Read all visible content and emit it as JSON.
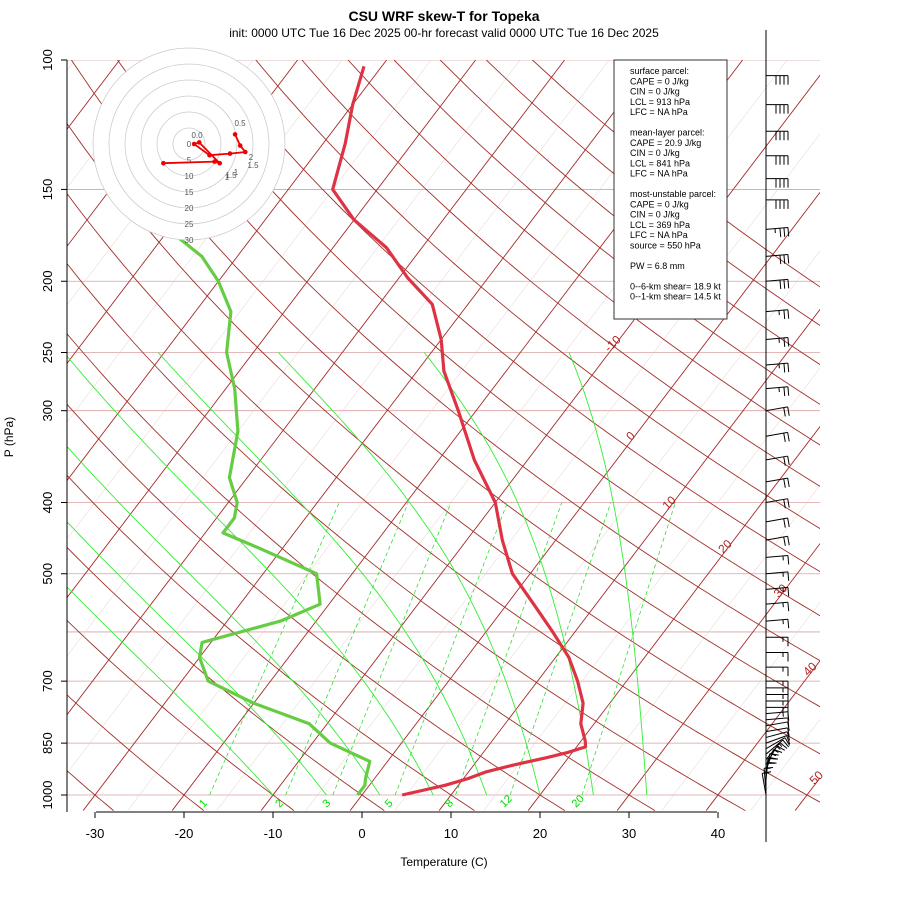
{
  "header": {
    "title": "CSU WRF skew-T for Topeka",
    "subtitle": "init: 0000 UTC Tue 16 Dec 2025    00-hr forecast valid 0000 UTC Tue 16 Dec 2025"
  },
  "colors": {
    "temperature": "#dd3344",
    "dewpoint": "#66cc44",
    "isotherm": "#a52a2a",
    "isobar": "#d9a0a0",
    "dry_adiabat": "#a0302a",
    "moist_adiabat": "#33ee33",
    "mixing_ratio": "#33dd33",
    "hodograph": "#ee0000"
  },
  "chart_data": {
    "type": "line",
    "title": "CSU WRF skew-T for Topeka",
    "xlabel": "Temperature (C)",
    "ylabel": "P (hPa)",
    "xlim": [
      -33,
      51
    ],
    "ylim": [
      1050,
      100
    ],
    "yscale": "log",
    "x_ticks": [
      "-30",
      "-20",
      "-10",
      "0",
      "10",
      "20",
      "30",
      "40"
    ],
    "y_ticks": [
      "100",
      "150",
      "200",
      "250",
      "300",
      "400",
      "500",
      "700",
      "850",
      "1000"
    ],
    "isobar_levels": [
      100,
      150,
      200,
      250,
      300,
      400,
      500,
      600,
      700,
      850,
      1000
    ],
    "isotherm_labels": [
      {
        "text": "-10",
        "t": -10,
        "p": 250
      },
      {
        "text": "0",
        "t": 0,
        "p": 330
      },
      {
        "text": "10",
        "t": 10,
        "p": 410
      },
      {
        "text": "20",
        "t": 20,
        "p": 470
      },
      {
        "text": "30",
        "t": 30,
        "p": 540
      },
      {
        "text": "40",
        "t": 40,
        "p": 690
      },
      {
        "text": "50",
        "t": 50,
        "p": 970
      }
    ],
    "mixing_ratio_labels": [
      "1",
      "2",
      "3",
      "5",
      "8",
      "12",
      "20"
    ],
    "series": [
      {
        "name": "Temperature",
        "points": [
          [
            4.5,
            1000
          ],
          [
            8.5,
            970
          ],
          [
            10.5,
            950
          ],
          [
            12,
            930
          ],
          [
            14.5,
            910
          ],
          [
            17.5,
            890
          ],
          [
            19.5,
            875
          ],
          [
            21,
            860
          ],
          [
            20.5,
            845
          ],
          [
            18.5,
            800
          ],
          [
            17,
            750
          ],
          [
            14.5,
            700
          ],
          [
            11.5,
            650
          ],
          [
            7.5,
            600
          ],
          [
            3,
            550
          ],
          [
            -2,
            500
          ],
          [
            -6,
            450
          ],
          [
            -10,
            400
          ],
          [
            -16,
            350
          ],
          [
            -22,
            300
          ],
          [
            -27,
            265
          ],
          [
            -30,
            240
          ],
          [
            -34,
            215
          ],
          [
            -39,
            198
          ],
          [
            -44,
            180
          ],
          [
            -50,
            165
          ],
          [
            -55,
            150
          ],
          [
            -57.5,
            130
          ],
          [
            -60,
            115
          ],
          [
            -62,
            102
          ]
        ]
      },
      {
        "name": "Dewpoint",
        "points": [
          [
            -0.5,
            1000
          ],
          [
            -0.5,
            970
          ],
          [
            -1,
            950
          ],
          [
            -2,
            900
          ],
          [
            -8,
            850
          ],
          [
            -12,
            800
          ],
          [
            -20,
            750
          ],
          [
            -27,
            700
          ],
          [
            -30,
            650
          ],
          [
            -31,
            620
          ],
          [
            -24,
            580
          ],
          [
            -21,
            550
          ],
          [
            -24,
            500
          ],
          [
            -33,
            460
          ],
          [
            -38,
            440
          ],
          [
            -38,
            420
          ],
          [
            -39,
            400
          ],
          [
            -42,
            370
          ],
          [
            -45,
            320
          ],
          [
            -49,
            280
          ],
          [
            -53,
            250
          ],
          [
            -56,
            220
          ],
          [
            -60,
            200
          ],
          [
            -64,
            185
          ],
          [
            -68,
            175
          ]
        ]
      }
    ],
    "wind_barbs_kt": [
      {
        "p": 1000,
        "spd": 12,
        "dir": 170
      },
      {
        "p": 985,
        "spd": 14,
        "dir": 175
      },
      {
        "p": 970,
        "spd": 16,
        "dir": 180
      },
      {
        "p": 955,
        "spd": 18,
        "dir": 185
      },
      {
        "p": 940,
        "spd": 18,
        "dir": 190
      },
      {
        "p": 925,
        "spd": 16,
        "dir": 200
      },
      {
        "p": 910,
        "spd": 15,
        "dir": 210
      },
      {
        "p": 895,
        "spd": 14,
        "dir": 220
      },
      {
        "p": 880,
        "spd": 13,
        "dir": 230
      },
      {
        "p": 865,
        "spd": 12,
        "dir": 240
      },
      {
        "p": 850,
        "spd": 12,
        "dir": 250
      },
      {
        "p": 835,
        "spd": 12,
        "dir": 255
      },
      {
        "p": 820,
        "spd": 12,
        "dir": 260
      },
      {
        "p": 805,
        "spd": 12,
        "dir": 260
      },
      {
        "p": 790,
        "spd": 12,
        "dir": 265
      },
      {
        "p": 775,
        "spd": 13,
        "dir": 265
      },
      {
        "p": 760,
        "spd": 13,
        "dir": 270
      },
      {
        "p": 745,
        "spd": 13,
        "dir": 270
      },
      {
        "p": 730,
        "spd": 13,
        "dir": 270
      },
      {
        "p": 715,
        "spd": 14,
        "dir": 270
      },
      {
        "p": 700,
        "spd": 14,
        "dir": 270
      },
      {
        "p": 670,
        "spd": 15,
        "dir": 270
      },
      {
        "p": 640,
        "spd": 15,
        "dir": 270
      },
      {
        "p": 610,
        "spd": 15,
        "dir": 270
      },
      {
        "p": 580,
        "spd": 15,
        "dir": 265
      },
      {
        "p": 550,
        "spd": 15,
        "dir": 265
      },
      {
        "p": 525,
        "spd": 15,
        "dir": 265
      },
      {
        "p": 500,
        "spd": 15,
        "dir": 265
      },
      {
        "p": 475,
        "spd": 15,
        "dir": 265
      },
      {
        "p": 450,
        "spd": 20,
        "dir": 260
      },
      {
        "p": 425,
        "spd": 20,
        "dir": 260
      },
      {
        "p": 400,
        "spd": 20,
        "dir": 260
      },
      {
        "p": 375,
        "spd": 20,
        "dir": 260
      },
      {
        "p": 350,
        "spd": 20,
        "dir": 260
      },
      {
        "p": 325,
        "spd": 20,
        "dir": 260
      },
      {
        "p": 300,
        "spd": 20,
        "dir": 260
      },
      {
        "p": 280,
        "spd": 25,
        "dir": 265
      },
      {
        "p": 260,
        "spd": 25,
        "dir": 265
      },
      {
        "p": 240,
        "spd": 25,
        "dir": 265
      },
      {
        "p": 220,
        "spd": 25,
        "dir": 265
      },
      {
        "p": 200,
        "spd": 30,
        "dir": 265
      },
      {
        "p": 185,
        "spd": 30,
        "dir": 265
      },
      {
        "p": 170,
        "spd": 35,
        "dir": 265
      },
      {
        "p": 155,
        "spd": 40,
        "dir": 270
      },
      {
        "p": 145,
        "spd": 40,
        "dir": 270
      },
      {
        "p": 135,
        "spd": 40,
        "dir": 270
      },
      {
        "p": 125,
        "spd": 40,
        "dir": 270
      },
      {
        "p": 115,
        "spd": 40,
        "dir": 270
      },
      {
        "p": 105,
        "spd": 40,
        "dir": 270
      }
    ],
    "hodograph": {
      "ring_labels": [
        "0",
        "5",
        "10",
        "15",
        "20",
        "25",
        "30"
      ],
      "point_labels": [
        "0.5",
        "0.0",
        "2",
        "1.5",
        "1",
        "1",
        "1.5"
      ],
      "points_uv_kt": [
        [
          4.5,
          11
        ],
        [
          5.0,
          7.5
        ],
        [
          5.5,
          5.5
        ],
        [
          4.0,
          5.0
        ],
        [
          2.0,
          4.5
        ],
        [
          0.5,
          8
        ],
        [
          1.0,
          8.5
        ],
        [
          3.0,
          2
        ],
        [
          2.5,
          2.5
        ],
        [
          -2.5,
          2.0
        ]
      ]
    }
  },
  "info_box": {
    "lines": [
      "surface parcel:",
      "CAPE = 0 J/kg",
      "CIN = 0 J/kg",
      "LCL = 913 hPa",
      "LFC = NA hPa",
      "",
      "mean-layer parcel:",
      "CAPE = 20.9 J/kg",
      "CIN = 0 J/kg",
      "LCL = 841 hPa",
      "LFC = NA hPa",
      "",
      "most-unstable parcel:",
      "CAPE = 0 J/kg",
      "CIN = 0 J/kg",
      "LCL = 369 hPa",
      "LFC = NA hPa",
      "source = 550 hPa",
      "",
      "PW =  6.8 mm",
      "",
      "0--6-km shear= 18.9 kt",
      "0--1-km shear= 14.5 kt"
    ]
  }
}
